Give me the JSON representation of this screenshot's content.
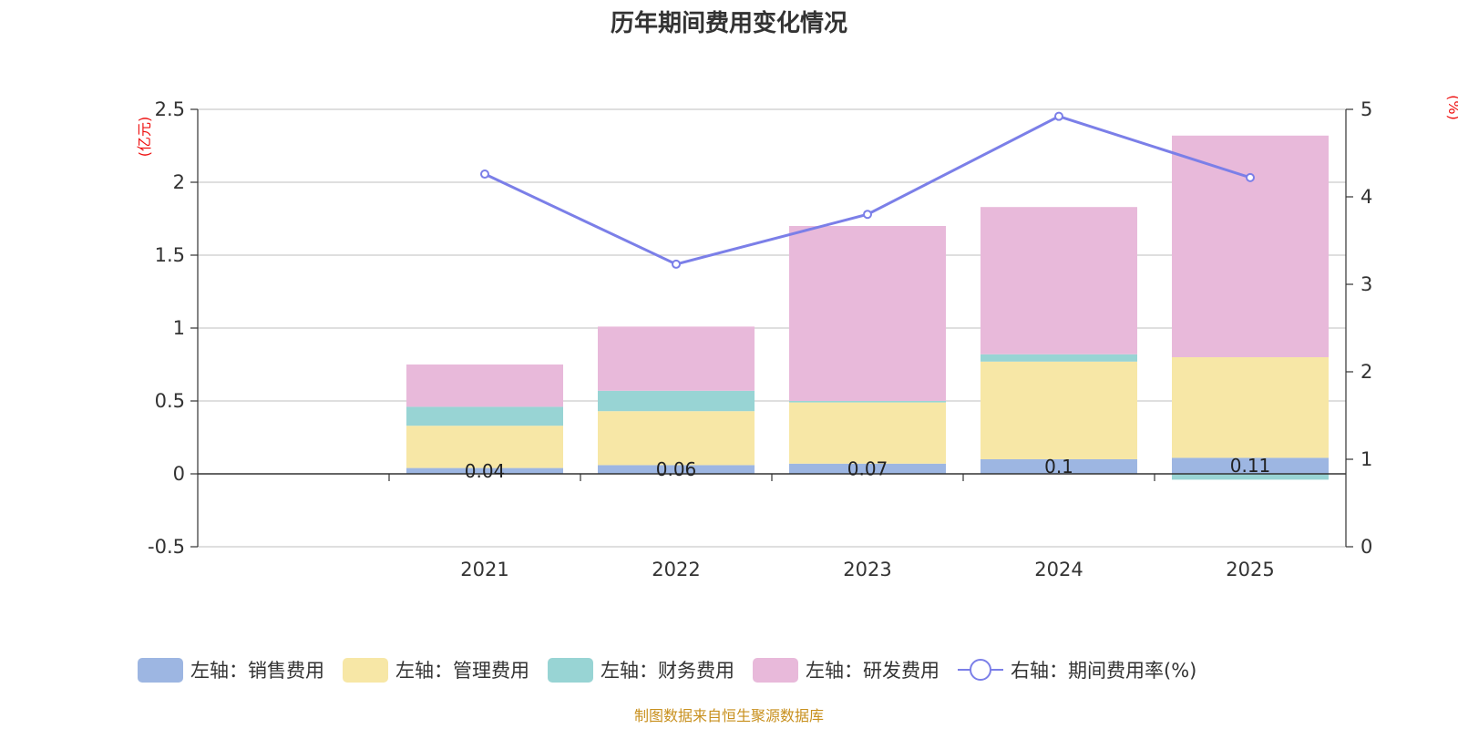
{
  "chart_data": {
    "type": "bar",
    "title": "历年期间费用变化情况",
    "categories": [
      "2021",
      "2022",
      "2023",
      "2024",
      "2025"
    ],
    "left_axis": {
      "unit": "(亿元)",
      "ylim": [
        -0.5,
        2.5
      ],
      "ticks": [
        "-0.5",
        "0",
        "0.5",
        "1",
        "1.5",
        "2",
        "2.5"
      ]
    },
    "right_axis": {
      "unit": "(%)",
      "ylim": [
        0,
        5
      ],
      "ticks": [
        "0",
        "1",
        "2",
        "3",
        "4",
        "5"
      ]
    },
    "series": [
      {
        "name": "左轴：销售费用",
        "type": "bar",
        "stack": true,
        "axis": "left",
        "color": "#9db6e2",
        "values": [
          0.04,
          0.06,
          0.07,
          0.1,
          0.11
        ],
        "labels": [
          "0.04",
          "0.06",
          "0.07",
          "0.1",
          "0.11"
        ]
      },
      {
        "name": "左轴：管理费用",
        "type": "bar",
        "stack": true,
        "axis": "left",
        "color": "#f7e7a6",
        "values": [
          0.29,
          0.37,
          0.42,
          0.67,
          0.69
        ]
      },
      {
        "name": "左轴：财务费用",
        "type": "bar",
        "stack": true,
        "axis": "left",
        "color": "#98d4d4",
        "values": [
          0.13,
          0.14,
          0.01,
          0.05,
          -0.04
        ]
      },
      {
        "name": "左轴：研发费用",
        "type": "bar",
        "stack": true,
        "axis": "left",
        "color": "#e8b9da",
        "values": [
          0.29,
          0.44,
          1.2,
          1.01,
          1.52
        ]
      },
      {
        "name": "右轴：期间费用率(%)",
        "type": "line",
        "axis": "right",
        "color": "#7b7fe8",
        "values": [
          4.26,
          3.23,
          3.8,
          4.92,
          4.22
        ]
      }
    ],
    "legend_position": "bottom",
    "grid": true
  },
  "source_note": "制图数据来自恒生聚源数据库"
}
